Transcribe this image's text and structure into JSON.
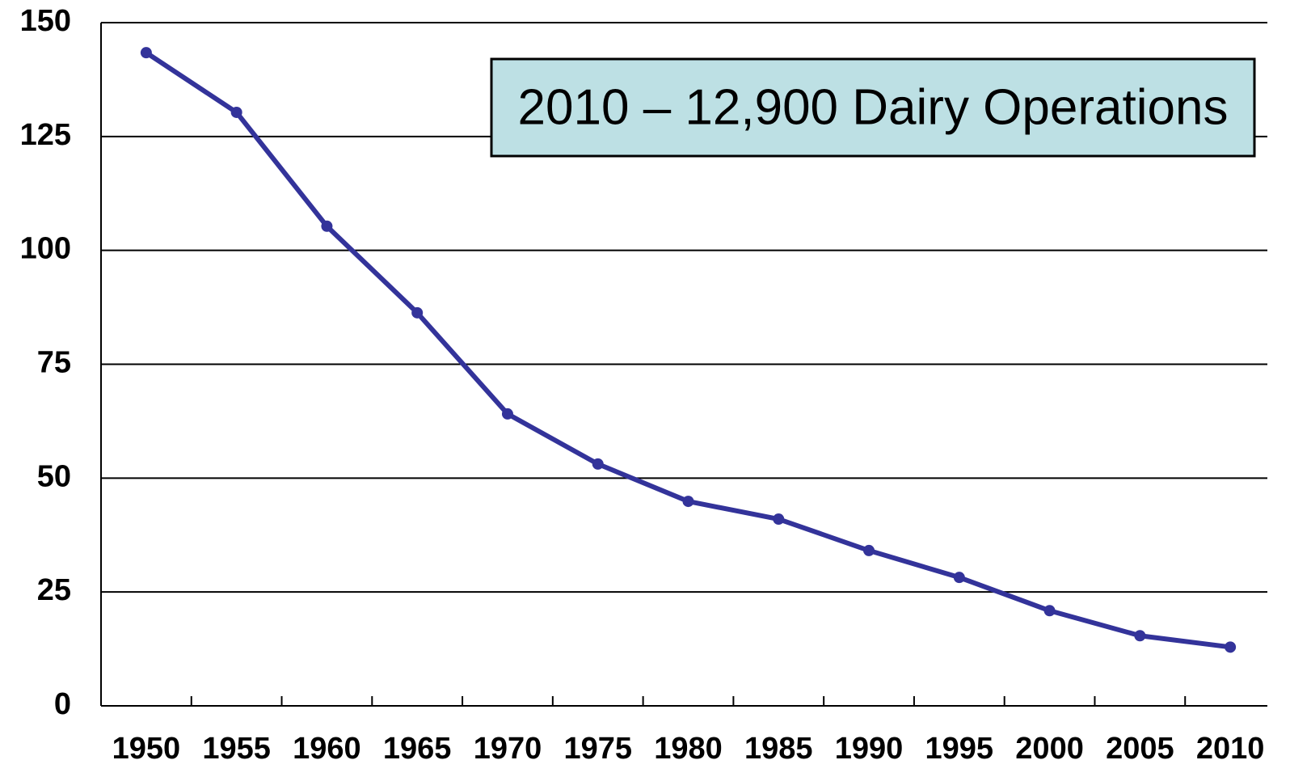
{
  "chart_data": {
    "type": "line",
    "annotation": "2010 – 12,900 Dairy Operations",
    "categories": [
      "1950",
      "1955",
      "1960",
      "1965",
      "1970",
      "1975",
      "1980",
      "1985",
      "1990",
      "1995",
      "2000",
      "2005",
      "2010"
    ],
    "series": [
      {
        "color": "#33339a",
        "values": [
          143.4,
          130.3,
          105.3,
          86.3,
          64.1,
          53.1,
          44.9,
          41.0,
          34.1,
          28.2,
          20.9,
          15.4,
          12.9
        ]
      }
    ],
    "ylim": [
      0,
      150
    ],
    "yticks": [
      0,
      25,
      50,
      75,
      100,
      125,
      150
    ],
    "grid": true
  }
}
